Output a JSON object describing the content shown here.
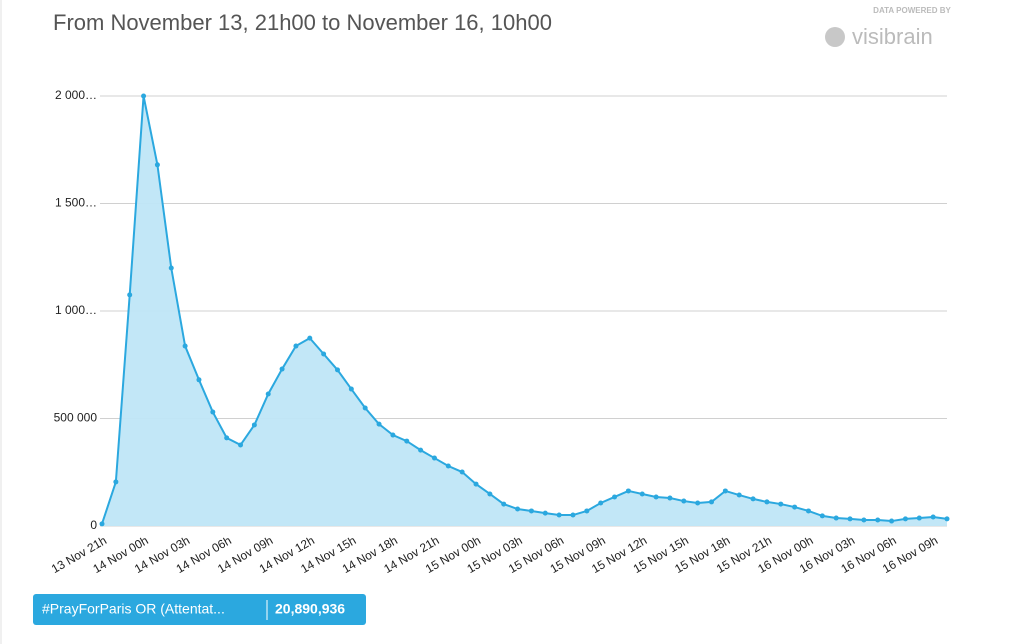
{
  "chart_data": {
    "type": "area",
    "title": "From November 13, 21h00 to November 16, 10h00",
    "branding": {
      "caption": "DATA POWERED BY",
      "name": "visibrain"
    },
    "categories": [
      "13 Nov 21h",
      null,
      null,
      "14 Nov 00h",
      null,
      null,
      "14 Nov 03h",
      null,
      null,
      "14 Nov 06h",
      null,
      null,
      "14 Nov 09h",
      null,
      null,
      "14 Nov 12h",
      null,
      null,
      "14 Nov 15h",
      null,
      null,
      "14 Nov 18h",
      null,
      null,
      "14 Nov 21h",
      null,
      null,
      "15 Nov 00h",
      null,
      null,
      "15 Nov 03h",
      null,
      null,
      "15 Nov 06h",
      null,
      null,
      "15 Nov 09h",
      null,
      null,
      "15 Nov 12h",
      null,
      null,
      "15 Nov 15h",
      null,
      null,
      "15 Nov 18h",
      null,
      null,
      "15 Nov 21h",
      null,
      null,
      "16 Nov 00h",
      null,
      null,
      "16 Nov 03h",
      null,
      null,
      "16 Nov 06h",
      null,
      null,
      "16 Nov 09h",
      null
    ],
    "series": [
      {
        "name": "#PrayForParis OR (Attentat...",
        "color": "#2ba8df",
        "fill": "#bfe6f7",
        "values": [
          10000,
          205000,
          1075000,
          2000000,
          1680000,
          1200000,
          837000,
          680000,
          530000,
          410000,
          377000,
          470000,
          614000,
          730000,
          837000,
          874000,
          800000,
          726000,
          637000,
          549000,
          474000,
          423000,
          395000,
          353000,
          316000,
          279000,
          251000,
          195000,
          149000,
          102000,
          79000,
          70000,
          60000,
          51000,
          51000,
          70000,
          107000,
          135000,
          163000,
          149000,
          135000,
          130000,
          116000,
          107000,
          112000,
          163000,
          144000,
          126000,
          112000,
          102000,
          88000,
          70000,
          47000,
          37000,
          33000,
          28000,
          28000,
          23000,
          33000,
          37000,
          42000,
          33000
        ],
        "total": "20,890,936"
      }
    ],
    "ylim": [
      0,
      2000000
    ],
    "yticks": [
      0,
      {
        "value": 500000,
        "label": "500 000"
      },
      {
        "value": 1000000,
        "label": "1 000…"
      },
      {
        "value": 1500000,
        "label": "1 500…"
      },
      {
        "value": 2000000,
        "label": "2 000…"
      }
    ],
    "grid": true
  }
}
